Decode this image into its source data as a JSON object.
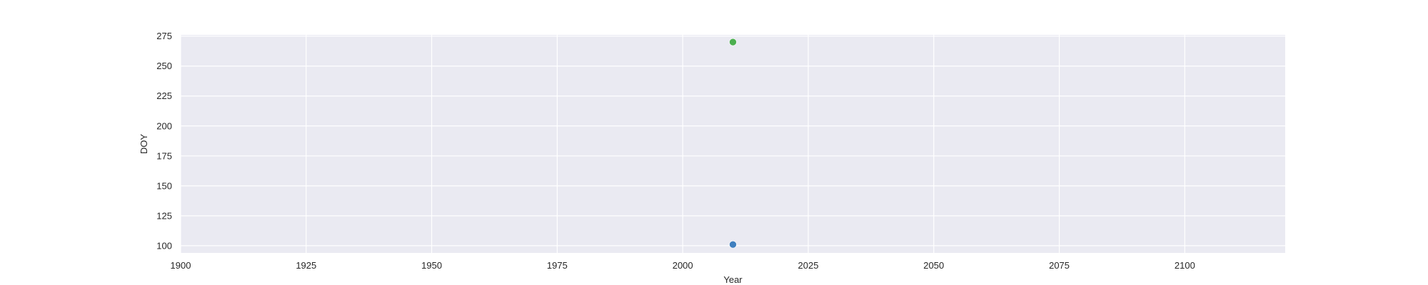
{
  "chart_data": {
    "type": "scatter",
    "xlabel": "Year",
    "ylabel": "DOY",
    "xlim": [
      1900,
      2120
    ],
    "ylim": [
      94,
      276
    ],
    "xticks": [
      1900,
      1925,
      1950,
      1975,
      2000,
      2025,
      2050,
      2075,
      2100
    ],
    "yticks": [
      100,
      125,
      150,
      175,
      200,
      225,
      250,
      275
    ],
    "grid": true,
    "colors": {
      "background": "#eaeaf2",
      "grid": "#ffffff",
      "text": "#262626"
    },
    "series": [
      {
        "color": "#3f7fbf",
        "points": [
          {
            "x": 2010,
            "y": 101
          }
        ]
      },
      {
        "color": "#4caf50",
        "points": [
          {
            "x": 2010,
            "y": 270
          }
        ]
      }
    ]
  }
}
